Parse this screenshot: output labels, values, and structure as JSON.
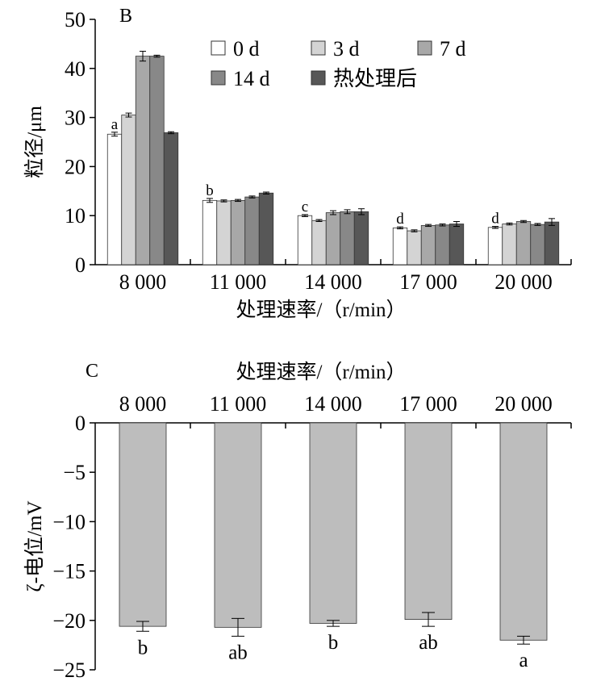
{
  "chart_data": [
    {
      "panel": "B",
      "type": "bar",
      "xlabel": "处理速率/（r/min）",
      "ylabel": "粒径/μm",
      "ylim": [
        0,
        50
      ],
      "yticks": [
        "0",
        "10",
        "20",
        "30",
        "40",
        "50"
      ],
      "categories": [
        "8 000",
        "11 000",
        "14 000",
        "17 000",
        "20 000"
      ],
      "legend_position": "top-right",
      "series": [
        {
          "name": "0 d",
          "color": "#ffffff",
          "values": [
            26.6,
            13.1,
            10.0,
            7.5,
            7.6
          ],
          "errors": [
            0.4,
            0.4,
            0.2,
            0.2,
            0.2
          ]
        },
        {
          "name": "3 d",
          "color": "#d4d4d4",
          "values": [
            30.5,
            13.0,
            9.0,
            6.9,
            8.3
          ],
          "errors": [
            0.4,
            0.2,
            0.2,
            0.2,
            0.2
          ]
        },
        {
          "name": "7 d",
          "color": "#a8a8a8",
          "values": [
            42.5,
            13.1,
            10.6,
            8.0,
            8.8
          ],
          "errors": [
            1.0,
            0.2,
            0.4,
            0.2,
            0.2
          ]
        },
        {
          "name": "14 d",
          "color": "#888888",
          "values": [
            42.5,
            13.8,
            10.8,
            8.1,
            8.2
          ],
          "errors": [
            0.2,
            0.2,
            0.4,
            0.2,
            0.2
          ]
        },
        {
          "name": "热处理后",
          "color": "#575757",
          "values": [
            26.9,
            14.6,
            10.8,
            8.3,
            8.7
          ],
          "errors": [
            0.2,
            0.2,
            0.6,
            0.5,
            0.7
          ]
        }
      ],
      "letters": [
        "a",
        "b",
        "c",
        "d",
        "d"
      ]
    },
    {
      "panel": "C",
      "type": "bar",
      "xlabel": "处理速率/（r/min）",
      "ylabel": "ζ-电位/mV",
      "ylim": [
        -25,
        0
      ],
      "yticks": [
        "0",
        "−5",
        "−10",
        "−15",
        "−20",
        "−25"
      ],
      "categories": [
        "8 000",
        "11 000",
        "14 000",
        "17 000",
        "20 000"
      ],
      "color": "#bdbdbd",
      "values": [
        -20.6,
        -20.7,
        -20.3,
        -19.9,
        -22.0
      ],
      "errors": [
        0.5,
        0.9,
        0.3,
        0.7,
        0.4
      ],
      "letters": [
        "b",
        "ab",
        "b",
        "ab",
        "a"
      ]
    }
  ]
}
